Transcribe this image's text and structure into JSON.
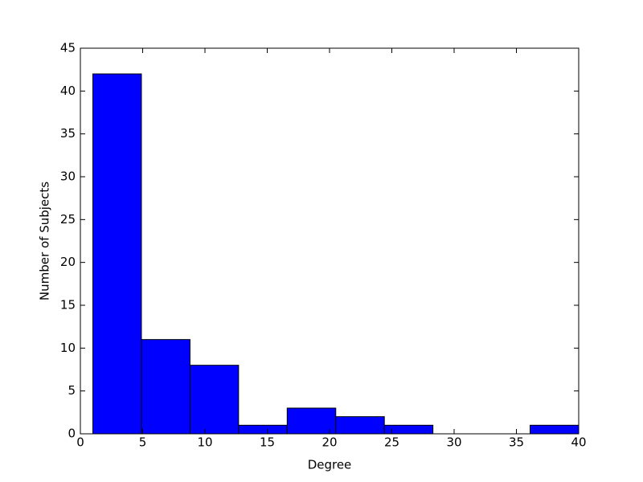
{
  "chart_data": {
    "type": "histogram",
    "x_label": "Degree",
    "y_label": "Number of Subjects",
    "bins": [
      1,
      4.9,
      8.8,
      12.7,
      16.6,
      20.5,
      24.4,
      28.3,
      32.2,
      36.1,
      40
    ],
    "values": [
      42,
      11,
      8,
      1,
      3,
      2,
      1,
      0,
      0,
      1
    ],
    "color": "#0000ff",
    "xlim": [
      0,
      40
    ],
    "xticks": [
      0,
      5,
      10,
      15,
      20,
      25,
      30,
      35,
      40
    ],
    "ylim": [
      0,
      45
    ],
    "yticks": [
      0,
      5,
      10,
      15,
      20,
      25,
      30,
      35,
      40,
      45
    ]
  }
}
